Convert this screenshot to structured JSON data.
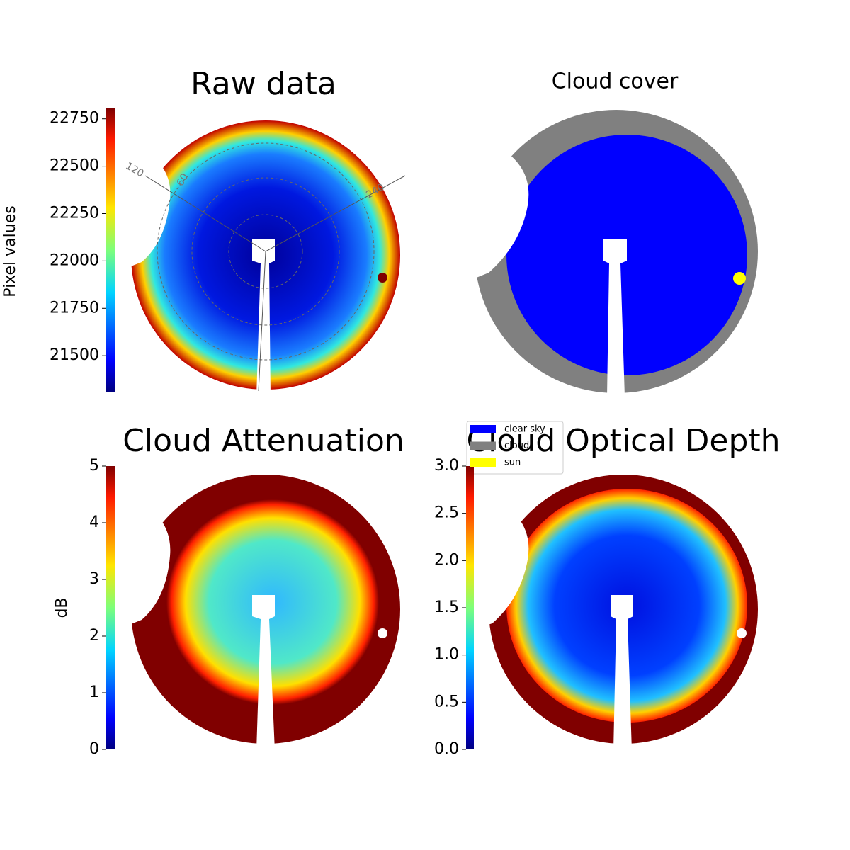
{
  "chart_data": [
    {
      "type": "image",
      "title": "Raw data",
      "colorbar_label": "Pixel values",
      "ylim": [
        21310,
        22805
      ],
      "yticks": [
        21500,
        21750,
        22000,
        22250,
        22500,
        22750
      ],
      "annotations": [
        "120",
        "60",
        "240"
      ]
    },
    {
      "type": "classification",
      "title": "Cloud cover",
      "series": [
        {
          "name": "clear sky",
          "color": "#0000ff"
        },
        {
          "name": "cloud",
          "color": "#808080"
        },
        {
          "name": "sun",
          "color": "#ffff00"
        }
      ]
    },
    {
      "type": "image",
      "title": "Cloud Attenuation",
      "colorbar_label": "dB",
      "ylim": [
        0,
        5
      ],
      "yticks": [
        0,
        1,
        2,
        3,
        4,
        5
      ]
    },
    {
      "type": "image",
      "title": "Cloud Optical Depth",
      "ylim": [
        0,
        3
      ],
      "yticks": [
        {
          "value": 0,
          "label": "0.0"
        },
        {
          "value": 0.5,
          "label": "0.5"
        },
        {
          "value": 1,
          "label": "1.0"
        },
        {
          "value": 1.5,
          "label": "1.5"
        },
        {
          "value": 2,
          "label": "2.0"
        },
        {
          "value": 2.5,
          "label": "2.5"
        },
        {
          "value": 3,
          "label": "3.0"
        }
      ]
    }
  ]
}
